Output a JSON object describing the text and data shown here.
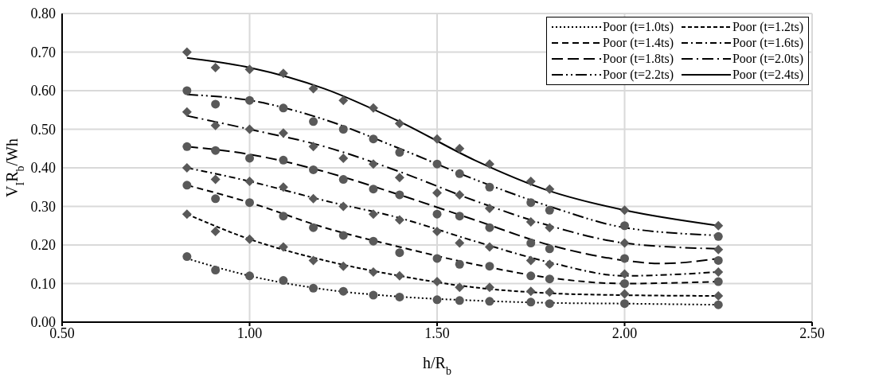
{
  "chart_data": {
    "type": "line",
    "xlabel": "h/R$_{b}$",
    "ylabel": "V$_{I}$R$_{b}$/Wh",
    "xlim": [
      0.5,
      2.5
    ],
    "xticks": [
      {
        "value": 0.5,
        "label": "0.50"
      },
      {
        "value": 1,
        "label": "1.00"
      },
      {
        "value": 1.5,
        "label": "1.50"
      },
      {
        "value": 2,
        "label": "2.00"
      },
      {
        "value": 2.5,
        "label": "2.50"
      }
    ],
    "ylim": [
      0,
      0.8
    ],
    "yticks": [
      {
        "value": 0,
        "label": "0.00"
      },
      {
        "value": 0.1,
        "label": "0.10"
      },
      {
        "value": 0.2,
        "label": "0.20"
      },
      {
        "value": 0.3,
        "label": "0.30"
      },
      {
        "value": 0.4,
        "label": "0.40"
      },
      {
        "value": 0.5,
        "label": "0.50"
      },
      {
        "value": 0.6,
        "label": "0.60"
      },
      {
        "value": 0.7,
        "label": "0.70"
      },
      {
        "value": 0.8,
        "label": "0.80"
      }
    ],
    "grid": true,
    "legend": "top right",
    "series": [
      {
        "type": "scatter",
        "color": "#595959",
        "marker": "circle",
        "x": [
          0.833,
          0.909,
          1.0,
          1.09,
          1.17,
          1.25,
          1.33,
          1.4,
          1.5,
          1.56,
          1.64,
          1.75,
          1.8,
          2.0,
          2.25
        ],
        "values": [
          0.17,
          0.135,
          0.12,
          0.108,
          0.088,
          0.08,
          0.07,
          0.065,
          0.058,
          0.056,
          0.054,
          0.052,
          0.048,
          0.048,
          0.045
        ]
      },
      {
        "type": "scatter",
        "color": "#595959",
        "marker": "diamond",
        "x": [
          0.833,
          0.909,
          1.0,
          1.09,
          1.17,
          1.25,
          1.33,
          1.4,
          1.5,
          1.56,
          1.64,
          1.75,
          1.8,
          2.0,
          2.25
        ],
        "values": [
          0.28,
          0.235,
          0.215,
          0.195,
          0.16,
          0.145,
          0.13,
          0.12,
          0.105,
          0.09,
          0.09,
          0.08,
          0.078,
          0.073,
          0.068
        ]
      },
      {
        "type": "scatter",
        "color": "#595959",
        "marker": "circle",
        "x": [
          0.833,
          0.909,
          1.0,
          1.09,
          1.17,
          1.25,
          1.33,
          1.4,
          1.5,
          1.56,
          1.64,
          1.75,
          1.8,
          2.0,
          2.25
        ],
        "values": [
          0.355,
          0.32,
          0.31,
          0.275,
          0.245,
          0.225,
          0.21,
          0.18,
          0.165,
          0.15,
          0.145,
          0.12,
          0.112,
          0.1,
          0.105
        ]
      },
      {
        "type": "scatter",
        "color": "#595959",
        "marker": "diamond",
        "x": [
          0.833,
          0.909,
          1.0,
          1.09,
          1.17,
          1.25,
          1.33,
          1.4,
          1.5,
          1.56,
          1.64,
          1.75,
          1.8,
          2.0,
          2.25
        ],
        "values": [
          0.4,
          0.37,
          0.365,
          0.35,
          0.32,
          0.3,
          0.28,
          0.265,
          0.235,
          0.205,
          0.195,
          0.16,
          0.15,
          0.125,
          0.13
        ]
      },
      {
        "type": "scatter",
        "color": "#595959",
        "marker": "circle",
        "x": [
          0.833,
          0.909,
          1.0,
          1.09,
          1.17,
          1.25,
          1.33,
          1.4,
          1.5,
          1.56,
          1.64,
          1.75,
          1.8,
          2.0,
          2.25
        ],
        "values": [
          0.455,
          0.445,
          0.425,
          0.42,
          0.395,
          0.37,
          0.345,
          0.33,
          0.28,
          0.275,
          0.245,
          0.205,
          0.19,
          0.165,
          0.16
        ]
      },
      {
        "type": "scatter",
        "color": "#595959",
        "marker": "diamond",
        "x": [
          0.833,
          0.909,
          1.0,
          1.09,
          1.17,
          1.25,
          1.33,
          1.4,
          1.5,
          1.56,
          1.64,
          1.75,
          1.8,
          2.0,
          2.25
        ],
        "values": [
          0.545,
          0.51,
          0.5,
          0.49,
          0.455,
          0.425,
          0.41,
          0.375,
          0.335,
          0.33,
          0.295,
          0.26,
          0.245,
          0.205,
          0.188
        ]
      },
      {
        "type": "scatter",
        "color": "#595959",
        "marker": "circle",
        "x": [
          0.833,
          0.909,
          1.0,
          1.09,
          1.17,
          1.25,
          1.33,
          1.4,
          1.5,
          1.56,
          1.64,
          1.75,
          1.8,
          2.0,
          2.25
        ],
        "values": [
          0.6,
          0.565,
          0.575,
          0.555,
          0.52,
          0.5,
          0.475,
          0.44,
          0.41,
          0.385,
          0.35,
          0.31,
          0.29,
          0.25,
          0.222
        ]
      },
      {
        "type": "scatter",
        "color": "#595959",
        "marker": "diamond",
        "x": [
          0.833,
          0.909,
          1.0,
          1.09,
          1.17,
          1.25,
          1.33,
          1.4,
          1.5,
          1.56,
          1.64,
          1.75,
          1.8,
          2.0,
          2.25
        ],
        "values": [
          0.7,
          0.66,
          0.655,
          0.645,
          0.605,
          0.575,
          0.555,
          0.515,
          0.475,
          0.45,
          0.41,
          0.365,
          0.345,
          0.29,
          0.25
        ]
      },
      {
        "name": "Poor (t=1.0ts)",
        "color": "#000000",
        "line_style": "dotted",
        "x": [
          0.833,
          1.0,
          1.2,
          1.4,
          1.6,
          1.8,
          2.0,
          2.25
        ],
        "values": [
          0.165,
          0.12,
          0.085,
          0.066,
          0.056,
          0.05,
          0.048,
          0.045
        ]
      },
      {
        "name": "Poor (t=1.2ts)",
        "color": "#000000",
        "line_style": "dashed",
        "x": [
          0.833,
          1.0,
          1.2,
          1.4,
          1.6,
          1.8,
          2.0,
          2.25
        ],
        "values": [
          0.28,
          0.215,
          0.16,
          0.12,
          0.09,
          0.075,
          0.07,
          0.068
        ]
      },
      {
        "name": "Poor (t=1.4ts)",
        "color": "#000000",
        "line_style": "mediumdash",
        "x": [
          0.833,
          1.0,
          1.2,
          1.4,
          1.6,
          1.8,
          2.0,
          2.25
        ],
        "values": [
          0.355,
          0.31,
          0.245,
          0.195,
          0.15,
          0.115,
          0.1,
          0.105
        ]
      },
      {
        "name": "Poor (t=1.6ts)",
        "color": "#000000",
        "line_style": "dashdot",
        "x": [
          0.833,
          1.0,
          1.2,
          1.4,
          1.6,
          1.8,
          2.0,
          2.25
        ],
        "values": [
          0.4,
          0.365,
          0.315,
          0.27,
          0.21,
          0.155,
          0.12,
          0.13
        ]
      },
      {
        "name": "Poor (t=1.8ts)",
        "color": "#000000",
        "line_style": "longdash",
        "x": [
          0.833,
          1.0,
          1.2,
          1.4,
          1.6,
          1.8,
          2.0,
          2.1,
          2.25
        ],
        "values": [
          0.455,
          0.435,
          0.39,
          0.33,
          0.265,
          0.2,
          0.16,
          0.152,
          0.165
        ]
      },
      {
        "name": "Poor (t=2.0ts)",
        "color": "#000000",
        "line_style": "longdashdot",
        "x": [
          0.833,
          1.0,
          1.2,
          1.4,
          1.6,
          1.8,
          2.0,
          2.25
        ],
        "values": [
          0.535,
          0.5,
          0.455,
          0.39,
          0.315,
          0.25,
          0.205,
          0.19
        ]
      },
      {
        "name": "Poor (t=2.2ts)",
        "color": "#000000",
        "line_style": "dashdotdot",
        "x": [
          0.833,
          1.0,
          1.2,
          1.4,
          1.6,
          1.8,
          2.0,
          2.25
        ],
        "values": [
          0.59,
          0.575,
          0.525,
          0.45,
          0.37,
          0.3,
          0.245,
          0.225
        ]
      },
      {
        "name": "Poor (t=2.4ts)",
        "color": "#000000",
        "line_style": "solid",
        "x": [
          0.833,
          1.0,
          1.2,
          1.4,
          1.6,
          1.8,
          2.0,
          2.25
        ],
        "values": [
          0.685,
          0.66,
          0.605,
          0.52,
          0.42,
          0.34,
          0.29,
          0.25
        ]
      }
    ]
  }
}
